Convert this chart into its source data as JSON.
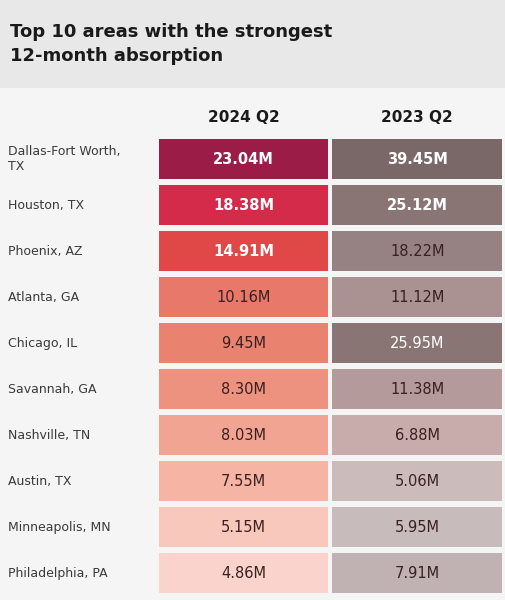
{
  "title": "Top 10 areas with the strongest\n12-month absorption",
  "col_headers": [
    "2024 Q2",
    "2023 Q2"
  ],
  "areas": [
    "Dallas-Fort Worth,\nTX",
    "Houston, TX",
    "Phoenix, AZ",
    "Atlanta, GA",
    "Chicago, IL",
    "Savannah, GA",
    "Nashville, TN",
    "Austin, TX",
    "Minneapolis, MN",
    "Philadelphia, PA"
  ],
  "values_2024": [
    "23.04M",
    "18.38M",
    "14.91M",
    "10.16M",
    "9.45M",
    "8.30M",
    "8.03M",
    "7.55M",
    "5.15M",
    "4.86M"
  ],
  "values_2023": [
    "39.45M",
    "25.12M",
    "18.22M",
    "11.12M",
    "25.95M",
    "11.38M",
    "6.88M",
    "5.06M",
    "5.95M",
    "7.91M"
  ],
  "colors_2024": [
    "#9B1D47",
    "#D42B4A",
    "#E04848",
    "#E8796A",
    "#EA8270",
    "#EE9280",
    "#F2A492",
    "#F5B4A4",
    "#F8C8BC",
    "#FAD4CC"
  ],
  "colors_2023": [
    "#7A6868",
    "#8A7575",
    "#968282",
    "#AA9292",
    "#8A7575",
    "#B49A9A",
    "#C8ACAC",
    "#CCBBBB",
    "#C8BBBB",
    "#C0B2B2"
  ],
  "text_colors_2024": [
    "#FFFFFF",
    "#FFFFFF",
    "#FFFFFF",
    "#3A2020",
    "#3A2020",
    "#3A2020",
    "#3A2020",
    "#3A2020",
    "#3A2020",
    "#3A2020"
  ],
  "text_colors_2023": [
    "#FFFFFF",
    "#FFFFFF",
    "#3A2020",
    "#3A2020",
    "#FFFFFF",
    "#3A2020",
    "#3A2020",
    "#3A2020",
    "#3A2020",
    "#3A2020"
  ],
  "bg_color": "#F5F5F5",
  "title_bg_color": "#E8E8E8",
  "label_color": "#3A3A3A"
}
